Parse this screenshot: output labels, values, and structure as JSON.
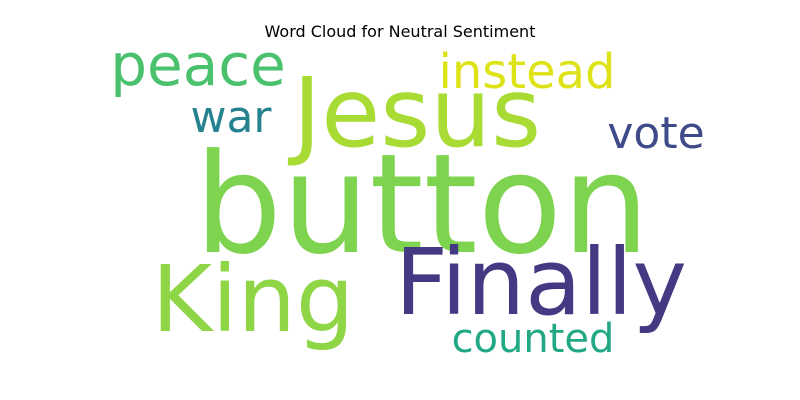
{
  "title": "Word Cloud for Neutral Sentiment",
  "words": [
    {
      "text": "button",
      "color": "#7ed34f"
    },
    {
      "text": "Jesus",
      "color": "#a8db34"
    },
    {
      "text": "King",
      "color": "#8ed645"
    },
    {
      "text": "Finally",
      "color": "#443983"
    },
    {
      "text": "peace",
      "color": "#4ac16d"
    },
    {
      "text": "instead",
      "color": "#dde318"
    },
    {
      "text": "war",
      "color": "#26828e"
    },
    {
      "text": "vote",
      "color": "#3e4a89"
    },
    {
      "text": "counted",
      "color": "#22a884"
    }
  ]
}
